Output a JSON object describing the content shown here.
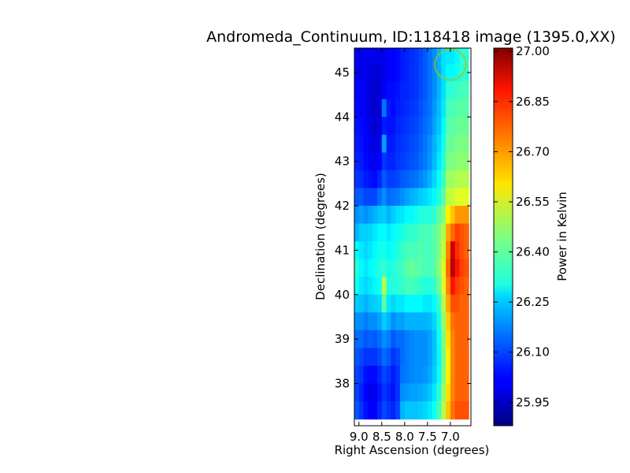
{
  "chart_data": {
    "type": "heatmap",
    "title": "Andromeda_Continuum, ID:118418 image (1395.0,XX)",
    "xlabel": "Right Ascension (degrees)",
    "ylabel": "Declination (degrees)",
    "xlim": [
      9.1,
      6.55
    ],
    "ylim": [
      37.05,
      45.55
    ],
    "x_ticks": [
      9.0,
      8.5,
      8.0,
      7.5,
      7.0
    ],
    "x_tick_labels": [
      "9.0",
      "8.5",
      "8.0",
      "7.5",
      "7.0"
    ],
    "y_ticks": [
      38,
      39,
      40,
      41,
      42,
      43,
      44,
      45
    ],
    "y_tick_labels": [
      "38",
      "39",
      "40",
      "41",
      "42",
      "43",
      "44",
      "45"
    ],
    "colorbar": {
      "label": "Power in Kelvin",
      "min": 25.88,
      "max": 27.01,
      "ticks": [
        25.95,
        26.1,
        26.25,
        26.4,
        26.55,
        26.7,
        26.85,
        27.0
      ],
      "tick_labels": [
        "25.95",
        "26.10",
        "26.25",
        "26.40",
        "26.55",
        "26.70",
        "26.85",
        "27.00"
      ],
      "colormap": "jet"
    },
    "ra_columns": [
      9.05,
      8.95,
      8.85,
      8.75,
      8.65,
      8.55,
      8.45,
      8.35,
      8.25,
      8.15,
      8.05,
      7.95,
      7.85,
      7.75,
      7.65,
      7.55,
      7.45,
      7.35,
      7.25,
      7.15,
      7.05,
      6.95,
      6.85,
      6.75,
      6.65
    ],
    "dec_rows": [
      45.4,
      45.0,
      44.6,
      44.2,
      43.8,
      43.4,
      43.0,
      42.6,
      42.2,
      41.8,
      41.4,
      41.0,
      40.6,
      40.2,
      39.8,
      39.4,
      39.0,
      38.6,
      38.2,
      37.8,
      37.4
    ],
    "values": [
      [
        26.0,
        26.0,
        26.0,
        26.0,
        26.0,
        26.0,
        26.0,
        26.02,
        26.02,
        26.03,
        26.05,
        26.06,
        26.07,
        26.08,
        26.1,
        26.12,
        26.15,
        26.18,
        26.22,
        26.27,
        26.28,
        26.28,
        26.3,
        26.35,
        26.35
      ],
      [
        26.0,
        26.0,
        26.0,
        25.99,
        25.98,
        25.98,
        26.0,
        26.02,
        26.02,
        26.03,
        26.05,
        26.06,
        26.07,
        26.08,
        26.1,
        26.12,
        26.15,
        26.18,
        26.22,
        26.27,
        26.3,
        26.3,
        26.32,
        26.35,
        26.35
      ],
      [
        26.02,
        26.02,
        26.0,
        25.98,
        25.97,
        25.97,
        26.01,
        26.03,
        26.03,
        26.04,
        26.06,
        26.06,
        26.07,
        26.08,
        26.1,
        26.12,
        26.15,
        26.18,
        26.22,
        26.27,
        26.35,
        26.35,
        26.37,
        26.38,
        26.38
      ],
      [
        26.03,
        26.02,
        26.0,
        25.98,
        25.96,
        25.98,
        26.15,
        26.05,
        26.03,
        26.05,
        26.06,
        26.07,
        26.08,
        26.09,
        26.11,
        26.13,
        26.15,
        26.19,
        26.23,
        26.28,
        26.38,
        26.38,
        26.4,
        26.4,
        26.4
      ],
      [
        26.04,
        26.03,
        26.01,
        25.99,
        25.97,
        25.99,
        26.05,
        26.04,
        26.04,
        26.06,
        26.07,
        26.08,
        26.09,
        26.1,
        26.12,
        26.14,
        26.16,
        26.2,
        26.24,
        26.3,
        26.4,
        26.4,
        26.42,
        26.42,
        26.42
      ],
      [
        26.05,
        26.04,
        26.02,
        26.0,
        25.98,
        26.0,
        26.2,
        26.05,
        26.05,
        26.07,
        26.08,
        26.09,
        26.1,
        26.11,
        26.13,
        26.15,
        26.18,
        26.22,
        26.26,
        26.32,
        26.42,
        26.42,
        26.44,
        26.44,
        26.44
      ],
      [
        26.06,
        26.05,
        26.03,
        26.01,
        26.0,
        26.02,
        26.08,
        26.06,
        26.06,
        26.08,
        26.09,
        26.1,
        26.11,
        26.12,
        26.14,
        26.16,
        26.19,
        26.23,
        26.28,
        26.34,
        26.44,
        26.44,
        26.46,
        26.46,
        26.46
      ],
      [
        26.08,
        26.07,
        26.05,
        26.04,
        26.03,
        26.06,
        26.12,
        26.09,
        26.09,
        26.1,
        26.12,
        26.13,
        26.14,
        26.15,
        26.17,
        26.19,
        26.22,
        26.26,
        26.31,
        26.37,
        26.48,
        26.48,
        26.5,
        26.5,
        26.5
      ],
      [
        26.12,
        26.12,
        26.1,
        26.1,
        26.1,
        26.14,
        26.18,
        26.14,
        26.15,
        26.16,
        26.18,
        26.2,
        26.22,
        26.23,
        26.25,
        26.26,
        26.28,
        26.3,
        26.34,
        26.4,
        26.52,
        26.52,
        26.55,
        26.55,
        26.55
      ],
      [
        26.18,
        26.2,
        26.18,
        26.2,
        26.22,
        26.24,
        26.25,
        26.22,
        26.25,
        26.27,
        26.28,
        26.3,
        26.3,
        26.32,
        26.34,
        26.34,
        26.34,
        26.36,
        26.4,
        26.46,
        26.6,
        26.65,
        26.7,
        26.7,
        26.7
      ],
      [
        26.22,
        26.25,
        26.25,
        26.26,
        26.28,
        26.3,
        26.3,
        26.28,
        26.3,
        26.32,
        26.33,
        26.35,
        26.36,
        26.36,
        26.38,
        26.38,
        26.38,
        26.4,
        26.44,
        26.5,
        26.68,
        26.75,
        26.8,
        26.78,
        26.76
      ],
      [
        26.3,
        26.28,
        26.26,
        26.28,
        26.3,
        26.32,
        26.33,
        26.3,
        26.32,
        26.34,
        26.36,
        26.38,
        26.38,
        26.38,
        26.4,
        26.38,
        26.38,
        26.4,
        26.44,
        26.52,
        26.72,
        26.92,
        26.82,
        26.78,
        26.76
      ],
      [
        26.35,
        26.3,
        26.28,
        26.3,
        26.32,
        26.34,
        26.36,
        26.33,
        26.34,
        26.36,
        26.37,
        26.4,
        26.42,
        26.4,
        26.4,
        26.38,
        26.38,
        26.4,
        26.45,
        26.55,
        26.75,
        26.95,
        26.85,
        26.8,
        26.78
      ],
      [
        26.32,
        26.28,
        26.26,
        26.28,
        26.3,
        26.32,
        26.5,
        26.34,
        26.34,
        26.35,
        26.36,
        26.38,
        26.38,
        26.37,
        26.36,
        26.34,
        26.34,
        26.36,
        26.42,
        26.54,
        26.72,
        26.85,
        26.8,
        26.78,
        26.76
      ],
      [
        26.25,
        26.24,
        26.22,
        26.24,
        26.25,
        26.26,
        26.4,
        26.28,
        26.26,
        26.28,
        26.28,
        26.3,
        26.3,
        26.3,
        26.3,
        26.28,
        26.28,
        26.3,
        26.36,
        26.5,
        26.68,
        26.78,
        26.78,
        26.76,
        26.76
      ],
      [
        26.18,
        26.18,
        26.16,
        26.18,
        26.18,
        26.2,
        26.25,
        26.22,
        26.18,
        26.2,
        26.2,
        26.22,
        26.22,
        26.22,
        26.22,
        26.22,
        26.23,
        26.26,
        26.33,
        26.46,
        26.64,
        26.74,
        26.76,
        26.76,
        26.76
      ],
      [
        26.14,
        26.14,
        26.12,
        26.13,
        26.12,
        26.14,
        26.18,
        26.16,
        26.12,
        26.14,
        26.14,
        26.16,
        26.17,
        26.18,
        26.18,
        26.18,
        26.2,
        26.24,
        26.31,
        26.44,
        26.62,
        26.72,
        26.76,
        26.76,
        26.76
      ],
      [
        26.12,
        26.1,
        26.08,
        26.08,
        26.08,
        26.1,
        26.14,
        26.12,
        26.08,
        26.1,
        26.14,
        26.16,
        26.17,
        26.18,
        26.18,
        26.18,
        26.2,
        26.24,
        26.3,
        26.43,
        26.6,
        26.72,
        26.76,
        26.76,
        26.76
      ],
      [
        26.1,
        26.08,
        26.04,
        26.03,
        26.03,
        26.06,
        26.1,
        26.08,
        26.05,
        26.08,
        26.15,
        26.16,
        26.17,
        26.18,
        26.18,
        26.19,
        26.21,
        26.25,
        26.31,
        26.44,
        26.6,
        26.72,
        26.76,
        26.76,
        26.76
      ],
      [
        26.1,
        26.06,
        26.02,
        26.0,
        26.0,
        26.04,
        26.08,
        26.06,
        26.04,
        26.08,
        26.18,
        26.19,
        26.2,
        26.2,
        26.21,
        26.22,
        26.24,
        26.28,
        26.35,
        26.47,
        26.62,
        26.72,
        26.76,
        26.76,
        26.76
      ],
      [
        26.12,
        26.08,
        26.04,
        26.02,
        26.02,
        26.06,
        26.1,
        26.08,
        26.06,
        26.1,
        26.22,
        26.24,
        26.24,
        26.24,
        26.25,
        26.26,
        26.28,
        26.32,
        26.38,
        26.5,
        26.65,
        26.74,
        26.78,
        26.78,
        26.78
      ]
    ],
    "annotation": {
      "shape": "circle",
      "center_ra": 7.0,
      "center_dec": 45.18,
      "radius_deg": 0.35,
      "color": "#c8b400"
    }
  }
}
